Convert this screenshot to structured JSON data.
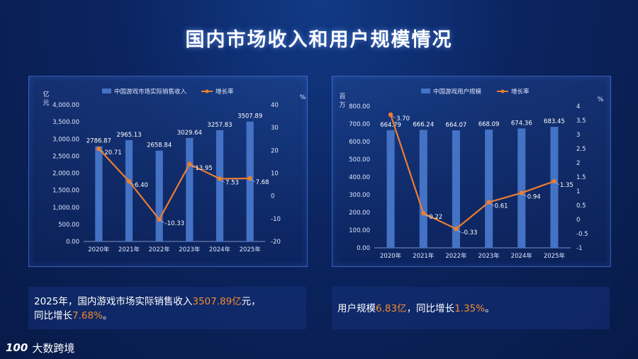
{
  "page_title": "国内市场收入和用户规模情况",
  "colors": {
    "bar": "#4472c4",
    "line": "#ed7d31",
    "accent": "#f28a30"
  },
  "chart_data": [
    {
      "type": "bar",
      "categories": [
        "2020年",
        "2021年",
        "2022年",
        "2023年",
        "2024年",
        "2025年"
      ],
      "series": [
        {
          "name": "中国游戏市场实际销售收入",
          "values": [
            2786.87,
            2965.13,
            2658.84,
            3029.64,
            3257.83,
            3507.89
          ],
          "labels": [
            "2786.87",
            "2965.13",
            "2658.84",
            "3029.64",
            "3257.83",
            "3507.89"
          ]
        },
        {
          "name": "增长率",
          "type": "line",
          "axis": "right",
          "values": [
            20.71,
            6.4,
            -10.33,
            13.95,
            7.53,
            7.68
          ],
          "labels": [
            "20.71",
            "6.40",
            "-10.33",
            "13.95",
            "7.53",
            "7.68"
          ]
        }
      ],
      "ylabel": "亿元",
      "y2label": "%",
      "ylim": [
        0,
        4000
      ],
      "y2lim": [
        -20,
        40
      ],
      "yticks": [
        "0.00",
        "500.00",
        "1,000.00",
        "1,500.00",
        "2,000.00",
        "2,500.00",
        "3,000.00",
        "3,500.00",
        "4,000.00"
      ],
      "y2ticks": [
        "-20",
        "-10",
        "0",
        "10",
        "20",
        "30",
        "40"
      ],
      "legend": "top-center",
      "grid": false
    },
    {
      "type": "bar",
      "categories": [
        "2020年",
        "2021年",
        "2022年",
        "2023年",
        "2024年",
        "2025年"
      ],
      "series": [
        {
          "name": "中国游戏用户规模",
          "values": [
            664.79,
            666.24,
            664.07,
            668.09,
            674.36,
            683.45
          ],
          "labels": [
            "664.79",
            "666.24",
            "664.07",
            "668.09",
            "674.36",
            "683.45"
          ]
        },
        {
          "name": "增长率",
          "type": "line",
          "axis": "right",
          "values": [
            3.7,
            0.22,
            -0.33,
            0.61,
            0.94,
            1.35
          ],
          "labels": [
            "3.70",
            "0.22",
            "-0.33",
            "0.61",
            "0.94",
            "1.35"
          ]
        }
      ],
      "ylabel": "百万",
      "y2label": "%",
      "ylim": [
        0,
        800
      ],
      "y2lim": [
        -1,
        4
      ],
      "yticks": [
        "0.00",
        "100.00",
        "200.00",
        "300.00",
        "400.00",
        "500.00",
        "600.00",
        "700.00",
        "800.00"
      ],
      "y2ticks": [
        "-1",
        "-0.5",
        "0",
        "0.5",
        "1",
        "1.5",
        "2",
        "2.5",
        "3",
        "3.5",
        "4"
      ],
      "legend": "top-center",
      "grid": false
    }
  ],
  "notes": {
    "left": {
      "p1": "2025年，国内游戏市场实际销售收入",
      "v1": "3507.89亿",
      "p2": "元，",
      "p3": "同比增长",
      "v2": "7.68%",
      "p4": "。"
    },
    "right": {
      "p1": "用户规模",
      "v1": "6.83亿",
      "p2": "，同比增长",
      "v2": "1.35%",
      "p3": "。"
    }
  },
  "brand": {
    "mark": "100",
    "name": "大数跨境"
  }
}
